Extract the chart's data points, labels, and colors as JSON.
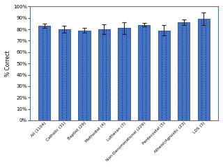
{
  "categories": [
    "All (1104)",
    "Catholic (31)",
    "Baptist (29)",
    "Methodist (4)",
    "Lutheran (3)",
    "Non-Denominational (229)",
    "Pentecostal (5)",
    "Atheist/Agnostic (23)",
    "LDS (3)"
  ],
  "values": [
    83,
    80,
    79,
    80,
    81,
    84,
    79,
    86,
    89
  ],
  "errors": [
    1.8,
    3.2,
    2.0,
    4.5,
    5.0,
    1.5,
    4.5,
    2.5,
    5.5
  ],
  "bar_color": "#4472C4",
  "bar_edge_color": "#2E4D8A",
  "error_color": "#1F1F1F",
  "ylabel": "% Correct",
  "ylim": [
    0,
    100
  ],
  "yticks": [
    0,
    10,
    20,
    30,
    40,
    50,
    60,
    70,
    80,
    90,
    100
  ],
  "ytick_labels": [
    "0%",
    "10%",
    "20%",
    "30%",
    "40%",
    "50%",
    "60%",
    "70%",
    "80%",
    "90%",
    "100%"
  ],
  "bg_color": "#ffffff",
  "plot_bg_color": "#ffffff",
  "border_color": "#4472C4",
  "dash_color": "#1a2f5a"
}
